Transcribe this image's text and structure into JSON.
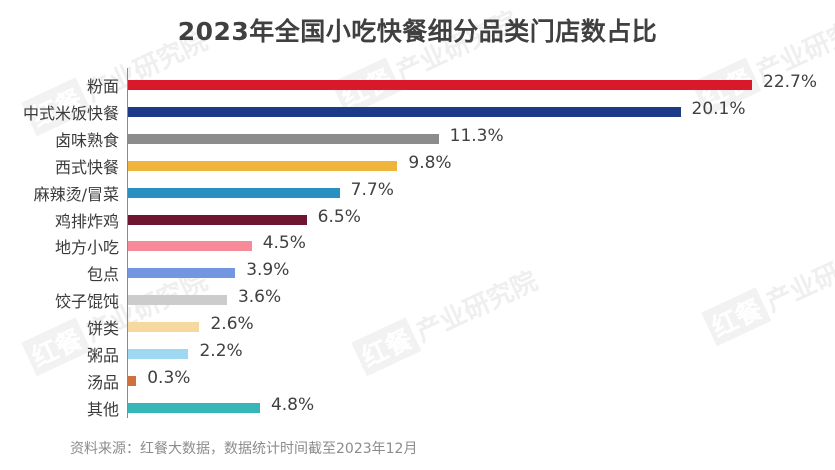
{
  "title": "2023年全国小吃快餐细分品类门店数占比",
  "source": "资料来源：红餐大数据，数据统计时间截至2023年12月",
  "watermark": {
    "brand": "红餐",
    "text": "产业研究院"
  },
  "chart_data": {
    "type": "bar",
    "orientation": "horizontal",
    "title": "2023年全国小吃快餐细分品类门店数占比",
    "xlabel": "",
    "ylabel": "",
    "unit": "%",
    "grid": false,
    "legend": null,
    "categories": [
      "粉面",
      "中式米饭快餐",
      "卤味熟食",
      "西式快餐",
      "麻辣烫/冒菜",
      "鸡排炸鸡",
      "地方小吃",
      "包点",
      "饺子馄饨",
      "饼类",
      "粥品",
      "汤品",
      "其他"
    ],
    "values": [
      22.7,
      20.1,
      11.3,
      9.8,
      7.7,
      6.5,
      4.5,
      3.9,
      3.6,
      2.6,
      2.2,
      0.3,
      4.8
    ],
    "labels": [
      "22.7%",
      "20.1%",
      "11.3%",
      "9.8%",
      "7.7%",
      "6.5%",
      "4.5%",
      "3.9%",
      "3.6%",
      "2.6%",
      "2.2%",
      "0.3%",
      "4.8%"
    ],
    "colors": [
      "#d9182a",
      "#1d3a8a",
      "#8c8c8c",
      "#efb43c",
      "#2990c0",
      "#6e1530",
      "#f78a98",
      "#7296e0",
      "#cccccc",
      "#f5d99e",
      "#9fd8f2",
      "#d0703a",
      "#36b6b6"
    ],
    "xlim": [
      0,
      22.7
    ]
  }
}
